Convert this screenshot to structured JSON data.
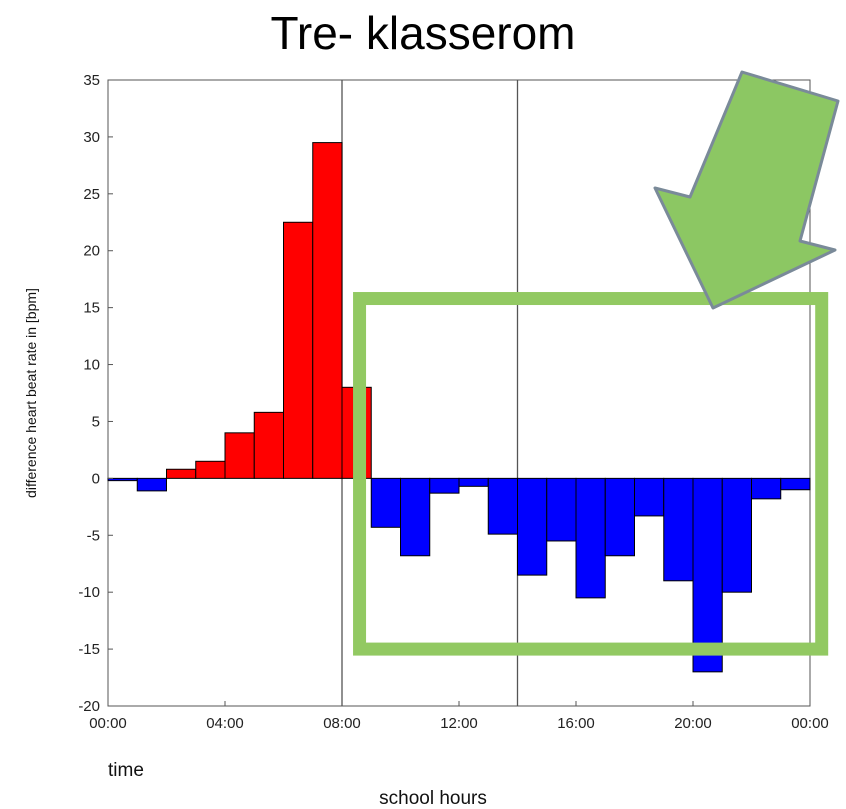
{
  "chart_data": {
    "type": "bar",
    "title": "Tre- klasserom",
    "ylabel": "difference heart beat rate in [bpm]",
    "xlabel": "time",
    "xlabel2": "school hours",
    "ylim": [
      -20,
      35
    ],
    "xlim": [
      0,
      24
    ],
    "yticks": [
      "35",
      "30",
      "25",
      "20",
      "15",
      "10",
      "5",
      "0",
      "-5",
      "-10",
      "-15",
      "-20"
    ],
    "xticks": [
      "00:00",
      "04:00",
      "08:00",
      "12:00",
      "16:00",
      "20:00",
      "00:00"
    ],
    "bin_width_hours": 1,
    "bins": [
      {
        "start": 0,
        "value": -0.2
      },
      {
        "start": 1,
        "value": -1.1
      },
      {
        "start": 2,
        "value": 0.8
      },
      {
        "start": 3,
        "value": 1.5
      },
      {
        "start": 4,
        "value": 4.0
      },
      {
        "start": 5,
        "value": 5.8
      },
      {
        "start": 6,
        "value": 22.5
      },
      {
        "start": 7,
        "value": 29.5
      },
      {
        "start": 8,
        "value": 8.0
      },
      {
        "start": 9,
        "value": -4.3
      },
      {
        "start": 10,
        "value": -6.8
      },
      {
        "start": 11,
        "value": -1.3
      },
      {
        "start": 12,
        "value": -0.7
      },
      {
        "start": 13,
        "value": -4.9
      },
      {
        "start": 14,
        "value": -8.5
      },
      {
        "start": 15,
        "value": -5.5
      },
      {
        "start": 16,
        "value": -10.5
      },
      {
        "start": 17,
        "value": -6.8
      },
      {
        "start": 18,
        "value": -3.3
      },
      {
        "start": 19,
        "value": -9.0
      },
      {
        "start": 20,
        "value": -17.0
      },
      {
        "start": 21,
        "value": -10.0
      },
      {
        "start": 22,
        "value": -1.8
      },
      {
        "start": 23,
        "value": -1.0
      }
    ],
    "vertical_lines": [
      8,
      14
    ],
    "positive_color": "#ff0000",
    "negative_color": "#0000ff",
    "highlight_box": {
      "x_range": [
        8.6,
        24.4
      ],
      "y_range": [
        -15,
        15.8
      ],
      "color": "#92c962"
    },
    "arrow_color": "#8cc763",
    "grid": false
  }
}
